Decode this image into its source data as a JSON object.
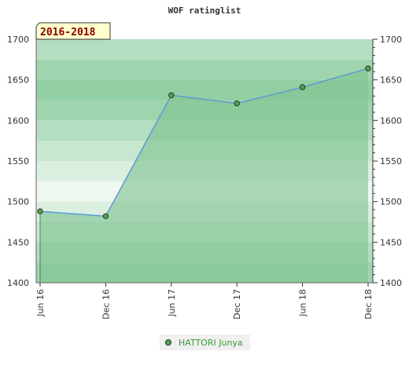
{
  "chart_data": {
    "type": "area",
    "title": "WOF ratinglist",
    "period_label": "2016-2018",
    "x": [
      "Jun 16",
      "Dec 16",
      "Jun 17",
      "Dec 17",
      "Jun 18",
      "Dec 18"
    ],
    "series": [
      {
        "name": "HATTORI Junya",
        "values": [
          1488,
          1482,
          1631,
          1621,
          1641,
          1664
        ]
      }
    ],
    "ylim": [
      1400,
      1700
    ],
    "yticks": [
      1400,
      1450,
      1500,
      1550,
      1600,
      1650,
      1700
    ],
    "y_axis": "both sides",
    "legend": "bottom-center",
    "grid": "horizontal bands",
    "colors": {
      "line": "#5b9bd5",
      "area": "#7ec38f",
      "marker": "#55a055",
      "legend_text": "#3a9a3a",
      "badge_fill": "#ffffcc"
    }
  }
}
